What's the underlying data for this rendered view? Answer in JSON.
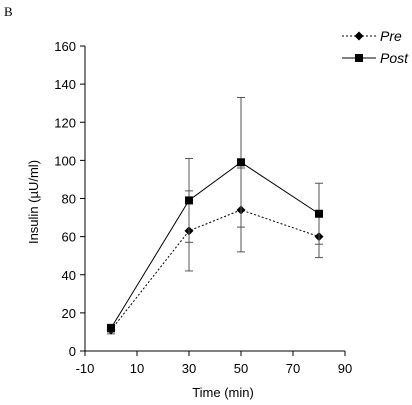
{
  "panel_label": "B",
  "chart_data": {
    "type": "line",
    "xlabel": "Time (min)",
    "ylabel": "Insulin (µU/ml)",
    "xlim": [
      -10,
      90
    ],
    "ylim": [
      0,
      160
    ],
    "xticks": [
      -10,
      10,
      30,
      50,
      70,
      90
    ],
    "yticks": [
      0,
      20,
      40,
      60,
      80,
      100,
      120,
      140,
      160
    ],
    "grid": false,
    "legend": "top-right",
    "series": [
      {
        "name": "Pre",
        "marker": "diamond",
        "line_style": "dotted",
        "color": "#000000",
        "x": [
          0,
          30,
          50,
          80
        ],
        "y": [
          11,
          63,
          74,
          60
        ],
        "err": [
          2,
          21,
          22,
          11
        ]
      },
      {
        "name": "Post",
        "marker": "square",
        "line_style": "solid",
        "color": "#000000",
        "x": [
          0,
          30,
          50,
          80
        ],
        "y": [
          12,
          79,
          99,
          72
        ],
        "err": [
          2,
          22,
          34,
          16
        ]
      }
    ]
  }
}
